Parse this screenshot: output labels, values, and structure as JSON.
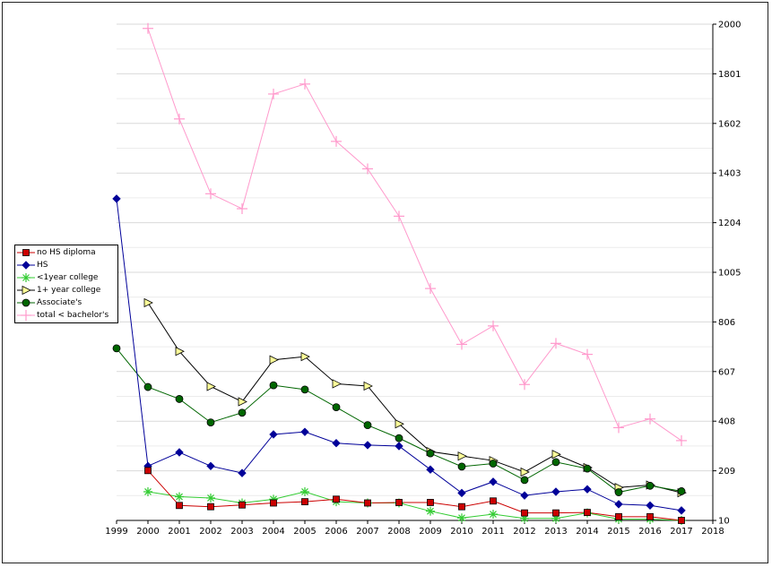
{
  "chart_data": {
    "type": "line",
    "x": [
      1999,
      2000,
      2001,
      2002,
      2003,
      2004,
      2005,
      2006,
      2007,
      2008,
      2009,
      2010,
      2011,
      2012,
      2013,
      2014,
      2015,
      2016,
      2017
    ],
    "x_ticks": [
      1999,
      2000,
      2001,
      2002,
      2003,
      2004,
      2005,
      2006,
      2007,
      2008,
      2009,
      2010,
      2011,
      2012,
      2013,
      2014,
      2015,
      2016,
      2017,
      2018
    ],
    "xlim": [
      1999,
      2018
    ],
    "ylim": [
      10,
      2000
    ],
    "y_ticks": [
      10,
      209,
      408,
      607,
      806,
      1005,
      1204,
      1403,
      1602,
      1801,
      2000
    ],
    "y_axis_side": "right",
    "grid": true,
    "legend_position": "left",
    "series": [
      {
        "name": "no HS diploma",
        "color": "#cc0000",
        "marker": "square",
        "values": [
          null,
          210,
          70,
          65,
          72,
          80,
          85,
          95,
          80,
          82,
          82,
          65,
          88,
          40,
          40,
          42,
          25,
          25,
          10
        ]
      },
      {
        "name": "HS",
        "color": "#000099",
        "marker": "diamond",
        "values": [
          1300,
          228,
          283,
          228,
          200,
          355,
          365,
          320,
          312,
          308,
          214,
          120,
          165,
          110,
          125,
          135,
          75,
          70,
          50
        ]
      },
      {
        "name": "<1year college",
        "color": "#33cc33",
        "marker": "star",
        "values": [
          null,
          125,
          105,
          100,
          80,
          95,
          125,
          85,
          80,
          80,
          47,
          20,
          35,
          18,
          18,
          40,
          15,
          15,
          10
        ]
      },
      {
        "name": "1+ year college",
        "color": "#000000",
        "marker": "triangle",
        "values": [
          null,
          883,
          688,
          547,
          486,
          654,
          667,
          558,
          549,
          397,
          286,
          268,
          250,
          204,
          275,
          222,
          142,
          152,
          121
        ]
      },
      {
        "name": "Associate's",
        "color": "#006600",
        "marker": "circle",
        "values": [
          700,
          545,
          497,
          403,
          442,
          552,
          535,
          464,
          392,
          340,
          279,
          226,
          238,
          172,
          244,
          218,
          123,
          149,
          127
        ]
      },
      {
        "name": "total < bachelor's",
        "color": "#ff99cc",
        "marker": "cross",
        "values": [
          null,
          1983,
          1620,
          1320,
          1260,
          1720,
          1760,
          1530,
          1420,
          1230,
          940,
          716,
          790,
          555,
          720,
          676,
          382,
          417,
          330
        ]
      }
    ]
  }
}
